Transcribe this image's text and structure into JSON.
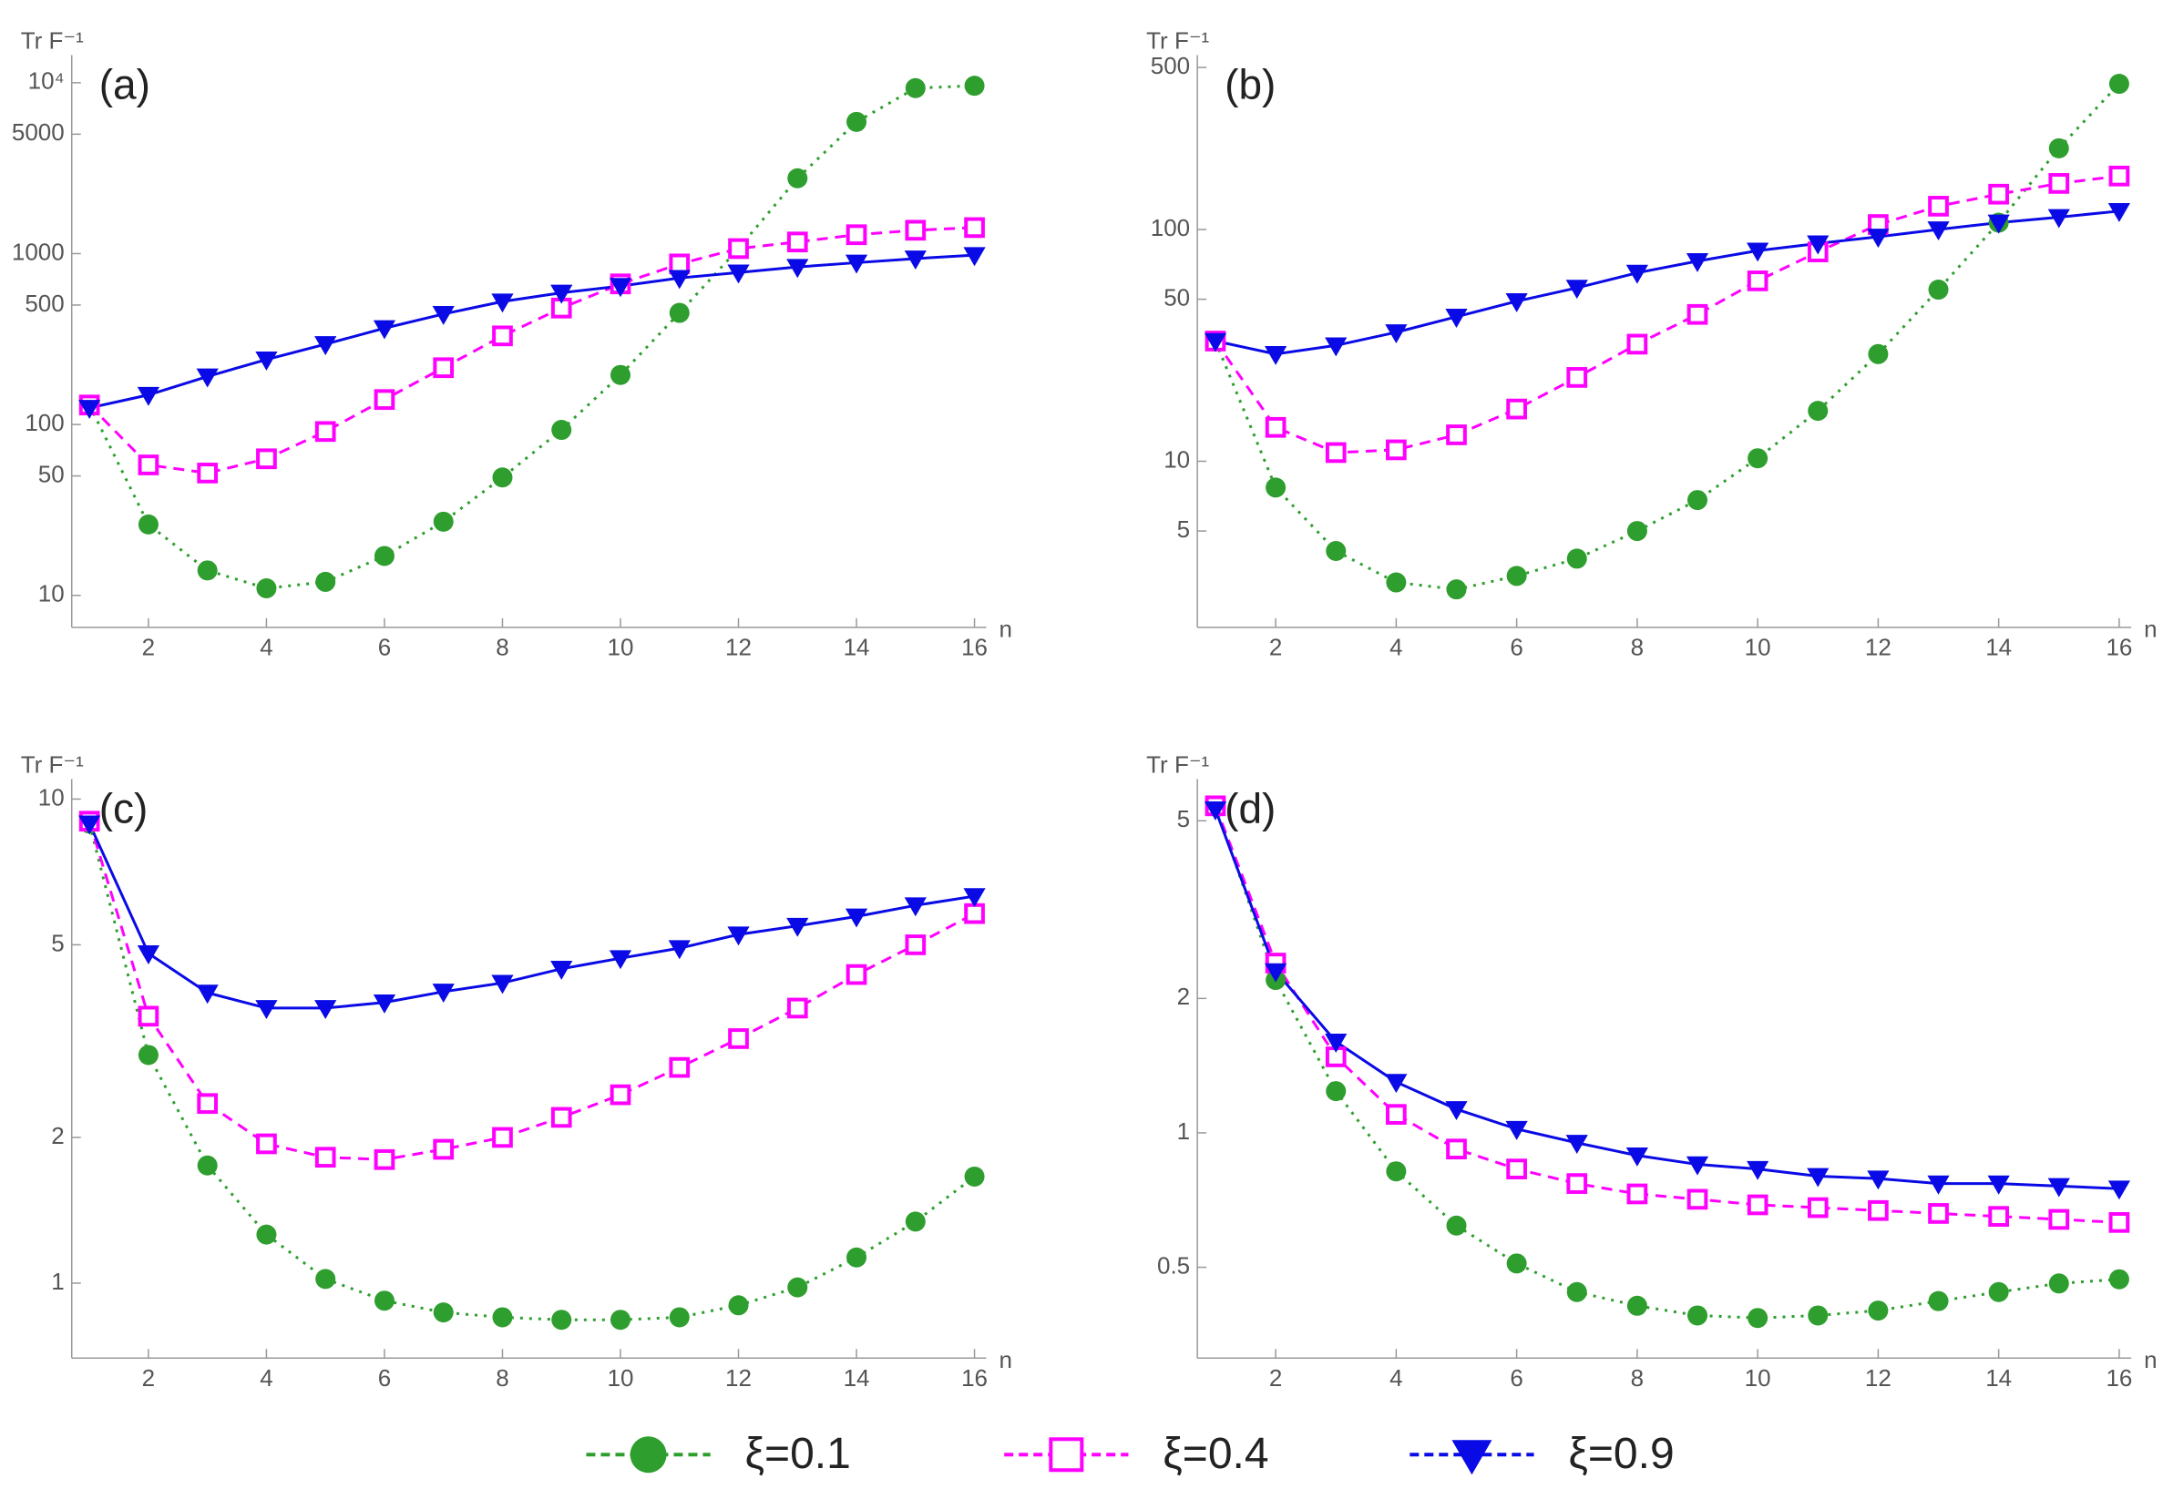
{
  "chart_data": [
    {
      "type": "line",
      "panel_label": "(a)",
      "y_label": "Tr F⁻¹",
      "x_label": "n",
      "log_y": true,
      "x": [
        1,
        2,
        3,
        4,
        5,
        6,
        7,
        8,
        9,
        10,
        11,
        12,
        13,
        14,
        15,
        16
      ],
      "xlim": [
        0.7,
        16.2
      ],
      "xticks": [
        2,
        4,
        6,
        8,
        10,
        12,
        14,
        16
      ],
      "ylim": [
        6.5,
        14500
      ],
      "yticks": [
        10,
        50,
        100,
        500,
        1000,
        5000,
        {
          "value": 10000,
          "label": "10⁴"
        }
      ],
      "series": [
        {
          "values": [
            130,
            26,
            14,
            11,
            12,
            17,
            27,
            49,
            93,
            195,
            450,
            1070,
            2760,
            5900,
            9300,
            9600
          ]
        },
        {
          "values": [
            130,
            58,
            52,
            63,
            91,
            140,
            215,
            330,
            480,
            665,
            870,
            1070,
            1170,
            1290,
            1370,
            1420
          ]
        },
        {
          "values": [
            125,
            149,
            191,
            240,
            295,
            366,
            443,
            524,
            590,
            646,
            720,
            775,
            835,
            885,
            935,
            980
          ]
        }
      ]
    },
    {
      "type": "line",
      "panel_label": "(b)",
      "y_label": "Tr F⁻¹",
      "x_label": "n",
      "log_y": true,
      "x": [
        1,
        2,
        3,
        4,
        5,
        6,
        7,
        8,
        9,
        10,
        11,
        12,
        13,
        14,
        15,
        16
      ],
      "xlim": [
        0.7,
        16.2
      ],
      "xticks": [
        2,
        4,
        6,
        8,
        10,
        12,
        14,
        16
      ],
      "ylim": [
        1.92,
        565
      ],
      "yticks": [
        5,
        10,
        50,
        100,
        500
      ],
      "series": [
        {
          "values": [
            33,
            7.7,
            4.1,
            3.0,
            2.8,
            3.2,
            3.8,
            5.0,
            6.8,
            10.3,
            16.5,
            29,
            55,
            107,
            224,
            425
          ]
        },
        {
          "values": [
            33,
            14,
            10.9,
            11.2,
            13,
            16.8,
            23,
            32,
            43,
            60,
            80,
            105,
            126,
            142,
            158,
            170
          ]
        },
        {
          "values": [
            33,
            29,
            31.6,
            36,
            42,
            49,
            56,
            65,
            73,
            81,
            87,
            93,
            100,
            107,
            113,
            120
          ]
        }
      ]
    },
    {
      "type": "line",
      "panel_label": "(c)",
      "y_label": "Tr F⁻¹",
      "x_label": "n",
      "log_y": true,
      "x": [
        1,
        2,
        3,
        4,
        5,
        6,
        7,
        8,
        9,
        10,
        11,
        12,
        13,
        14,
        15,
        16
      ],
      "xlim": [
        0.7,
        16.2
      ],
      "xticks": [
        2,
        4,
        6,
        8,
        10,
        12,
        14,
        16
      ],
      "ylim": [
        0.7,
        11
      ],
      "yticks": [
        1,
        2,
        5,
        10
      ],
      "series": [
        {
          "values": [
            8.9,
            2.96,
            1.75,
            1.26,
            1.02,
            0.92,
            0.87,
            0.85,
            0.84,
            0.84,
            0.85,
            0.9,
            0.98,
            1.13,
            1.34,
            1.66
          ]
        },
        {
          "values": [
            9.0,
            3.56,
            2.35,
            1.94,
            1.82,
            1.8,
            1.89,
            2.0,
            2.2,
            2.45,
            2.79,
            3.2,
            3.7,
            4.34,
            5.0,
            5.8
          ]
        },
        {
          "values": [
            8.9,
            4.8,
            3.98,
            3.7,
            3.7,
            3.8,
            4.0,
            4.17,
            4.46,
            4.69,
            4.92,
            5.25,
            5.47,
            5.72,
            6.03,
            6.3
          ]
        }
      ]
    },
    {
      "type": "line",
      "panel_label": "(d)",
      "y_label": "Tr F⁻¹",
      "x_label": "n",
      "log_y": true,
      "x": [
        1,
        2,
        3,
        4,
        5,
        6,
        7,
        8,
        9,
        10,
        11,
        12,
        13,
        14,
        15,
        16
      ],
      "xlim": [
        0.7,
        16.2
      ],
      "xticks": [
        2,
        4,
        6,
        8,
        10,
        12,
        14,
        16
      ],
      "ylim": [
        0.313,
        6.2
      ],
      "yticks": [
        0.5,
        1,
        2,
        5
      ],
      "series": [
        {
          "values": [
            5.4,
            2.2,
            1.24,
            0.82,
            0.62,
            0.51,
            0.44,
            0.41,
            0.39,
            0.385,
            0.39,
            0.4,
            0.42,
            0.44,
            0.46,
            0.47
          ]
        },
        {
          "values": [
            5.4,
            2.4,
            1.48,
            1.1,
            0.92,
            0.83,
            0.77,
            0.73,
            0.71,
            0.69,
            0.68,
            0.67,
            0.66,
            0.65,
            0.64,
            0.63
          ]
        },
        {
          "values": [
            5.3,
            2.3,
            1.6,
            1.3,
            1.13,
            1.02,
            0.95,
            0.89,
            0.85,
            0.83,
            0.8,
            0.79,
            0.77,
            0.77,
            0.76,
            0.75
          ]
        }
      ]
    }
  ],
  "legend": [
    {
      "name": "ξ=0.1",
      "color": "#2e9e2e",
      "marker": "circle",
      "dash": "dotted"
    },
    {
      "name": "ξ=0.4",
      "color": "#ff00ff",
      "marker": "square",
      "dash": "dashed"
    },
    {
      "name": "ξ=0.9",
      "color": "#0a0ae6",
      "marker": "triangle",
      "dash": "solid"
    }
  ]
}
